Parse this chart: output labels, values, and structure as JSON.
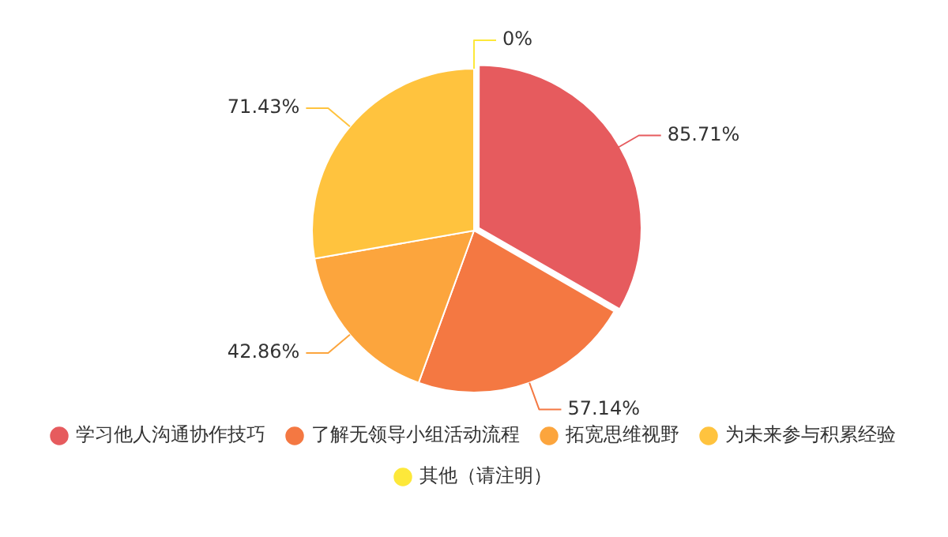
{
  "chart_data": {
    "type": "pie",
    "categories": [
      "学习他人沟通协作技巧",
      "了解无领导小组活动流程",
      "拓宽思维视野",
      "为未来参与积累经验",
      "其他（请注明）"
    ],
    "values": [
      85.71,
      57.14,
      42.86,
      71.43,
      0
    ],
    "value_labels": [
      "85.71%",
      "57.14%",
      "42.86%",
      "71.43%",
      "0%"
    ],
    "colors": [
      "#e65b5e",
      "#f47842",
      "#fca53d",
      "#ffc33e",
      "#fde83a"
    ],
    "legend": "bottom"
  }
}
